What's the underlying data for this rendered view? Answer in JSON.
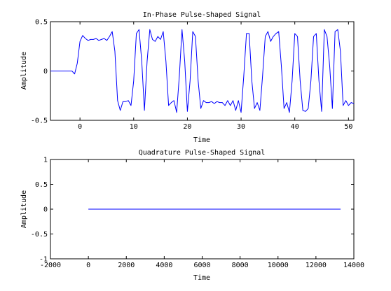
{
  "chart_data": [
    {
      "type": "line",
      "title": "In-Phase Pulse-Shaped Signal",
      "xlabel": "Time",
      "ylabel": "Amplitude",
      "xlim": [
        -5.5,
        51
      ],
      "ylim": [
        -0.5,
        0.5
      ],
      "xticks": [
        0,
        10,
        20,
        30,
        40,
        50
      ],
      "xtick_labels": [
        "0",
        "10",
        "20",
        "30",
        "40",
        "50"
      ],
      "yticks": [
        0.5,
        0,
        -0.5
      ],
      "ytick_labels": [
        "0.5",
        "0",
        "-0.5"
      ],
      "grid": false,
      "series": [
        {
          "color": "#0000ff",
          "x": [
            -5.5,
            -4.5,
            -3.5,
            -2.5,
            -1.5,
            -1,
            -0.5,
            0,
            0.5,
            1,
            1.5,
            2,
            2.5,
            3,
            3.5,
            4,
            4.5,
            5,
            5.5,
            6,
            6.5,
            7,
            7.5,
            8,
            8.5,
            9,
            9.5,
            10,
            10.5,
            11,
            11.5,
            12,
            12.5,
            13,
            13.5,
            14,
            14.5,
            15,
            15.5,
            16,
            16.5,
            17,
            17.5,
            18,
            18.5,
            19,
            19.5,
            20,
            20.5,
            21,
            21.5,
            22,
            22.5,
            23,
            23.5,
            24,
            24.5,
            25,
            25.5,
            26,
            26.5,
            27,
            27.5,
            28,
            28.5,
            29,
            29.5,
            30,
            30.5,
            31,
            31.5,
            32,
            32.5,
            33,
            33.5,
            34,
            34.5,
            35,
            35.5,
            36,
            36.5,
            37,
            37.5,
            38,
            38.5,
            39,
            39.5,
            40,
            40.5,
            41,
            41.5,
            42,
            42.5,
            43,
            43.5,
            44,
            44.5,
            45,
            45.5,
            46,
            46.5,
            47,
            47.5,
            48,
            48.5,
            49,
            49.5,
            50,
            50.5,
            51
          ],
          "y": [
            0,
            0,
            0,
            0,
            0,
            -0.03,
            0.08,
            0.3,
            0.36,
            0.33,
            0.31,
            0.32,
            0.32,
            0.33,
            0.31,
            0.32,
            0.33,
            0.31,
            0.35,
            0.4,
            0.2,
            -0.3,
            -0.4,
            -0.31,
            -0.31,
            -0.3,
            -0.35,
            -0.1,
            0.38,
            0.42,
            0.1,
            -0.4,
            0.1,
            0.42,
            0.32,
            0.3,
            0.35,
            0.32,
            0.4,
            0.1,
            -0.35,
            -0.32,
            -0.3,
            -0.42,
            -0.05,
            0.42,
            0.1,
            -0.41,
            -0.1,
            0.4,
            0.35,
            -0.1,
            -0.38,
            -0.3,
            -0.32,
            -0.32,
            -0.31,
            -0.33,
            -0.31,
            -0.32,
            -0.32,
            -0.35,
            -0.3,
            -0.35,
            -0.3,
            -0.4,
            -0.3,
            -0.42,
            -0.05,
            0.38,
            0.38,
            -0.1,
            -0.38,
            -0.32,
            -0.4,
            -0.05,
            0.35,
            0.4,
            0.3,
            0.35,
            0.38,
            0.4,
            0.05,
            -0.38,
            -0.32,
            -0.42,
            -0.1,
            0.38,
            0.35,
            -0.1,
            -0.4,
            -0.41,
            -0.38,
            -0.1,
            0.35,
            0.38,
            -0.1,
            -0.41,
            0.42,
            0.35,
            0.05,
            -0.38,
            0.4,
            0.42,
            0.2,
            -0.35,
            -0.3,
            -0.35,
            -0.32,
            -0.33
          ]
        }
      ]
    },
    {
      "type": "line",
      "title": "Quadrature Pulse-Shaped Signal",
      "xlabel": "Time",
      "ylabel": "Amplitude",
      "xlim": [
        -2000,
        14000
      ],
      "ylim": [
        -1,
        1
      ],
      "xticks": [
        -2000,
        0,
        2000,
        4000,
        6000,
        8000,
        10000,
        12000,
        14000
      ],
      "xtick_labels": [
        "-2000",
        "0",
        "2000",
        "4000",
        "6000",
        "8000",
        "10000",
        "12000",
        "14000"
      ],
      "yticks": [
        1,
        0.5,
        0,
        -0.5,
        -1
      ],
      "ytick_labels": [
        "1",
        "0.5",
        "0",
        "-0.5",
        "-1"
      ],
      "grid": false,
      "series": [
        {
          "color": "#0000ff",
          "x": [
            0,
            13300
          ],
          "y": [
            0,
            0
          ]
        }
      ]
    }
  ]
}
